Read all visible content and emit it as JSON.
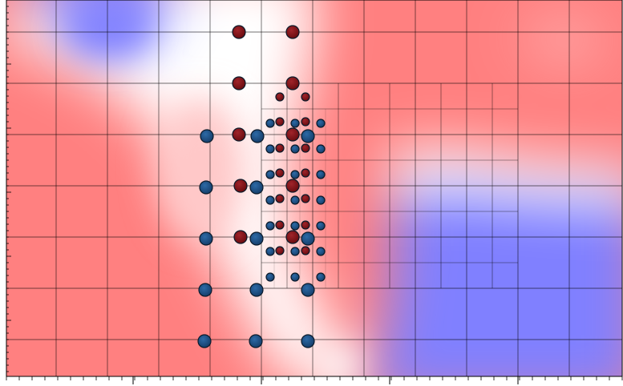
{
  "colors": {
    "background": "#ffffff",
    "red_field": "#ff8080",
    "white_field": "#ffffff",
    "blue_field": "#8080ff",
    "grid_line": "#000000",
    "sample_red": "#7a0f14",
    "sample_blue": "#1d4f86"
  },
  "field_regions": [
    {
      "color": "blue",
      "label": ""
    },
    {
      "color": "red",
      "label": ""
    },
    {
      "color": "white",
      "label": ""
    }
  ],
  "samples": {
    "red_large": [
      [
        298,
        40
      ],
      [
        365,
        40
      ],
      [
        298,
        104
      ],
      [
        365,
        104
      ],
      [
        298,
        168
      ],
      [
        365,
        168
      ],
      [
        300,
        232
      ],
      [
        365,
        232
      ],
      [
        300,
        296
      ],
      [
        365,
        296
      ]
    ],
    "blue_large": [
      [
        258,
        170
      ],
      [
        321,
        170
      ],
      [
        384,
        170
      ],
      [
        257,
        234
      ],
      [
        320,
        234
      ],
      [
        257,
        298
      ],
      [
        320,
        298
      ],
      [
        384,
        298
      ],
      [
        256,
        362
      ],
      [
        320,
        362
      ],
      [
        384,
        362
      ],
      [
        255,
        426
      ],
      [
        319,
        426
      ],
      [
        384,
        426
      ]
    ],
    "red_small": [
      [
        349,
        121
      ],
      [
        381,
        121
      ],
      [
        349,
        152
      ],
      [
        381,
        152
      ],
      [
        349,
        185
      ],
      [
        381,
        185
      ],
      [
        349,
        216
      ],
      [
        381,
        216
      ],
      [
        349,
        248
      ],
      [
        381,
        248
      ],
      [
        349,
        281
      ],
      [
        381,
        281
      ],
      [
        349,
        313
      ],
      [
        381,
        313
      ]
    ],
    "blue_small": [
      [
        337,
        154
      ],
      [
        368,
        154
      ],
      [
        400,
        154
      ],
      [
        337,
        186
      ],
      [
        368,
        186
      ],
      [
        400,
        186
      ],
      [
        337,
        218
      ],
      [
        368,
        218
      ],
      [
        400,
        218
      ],
      [
        337,
        250
      ],
      [
        368,
        250
      ],
      [
        400,
        250
      ],
      [
        337,
        282
      ],
      [
        368,
        282
      ],
      [
        400,
        282
      ],
      [
        337,
        314
      ],
      [
        368,
        314
      ],
      [
        400,
        314
      ],
      [
        337,
        346
      ],
      [
        368,
        346
      ],
      [
        400,
        346
      ]
    ]
  }
}
